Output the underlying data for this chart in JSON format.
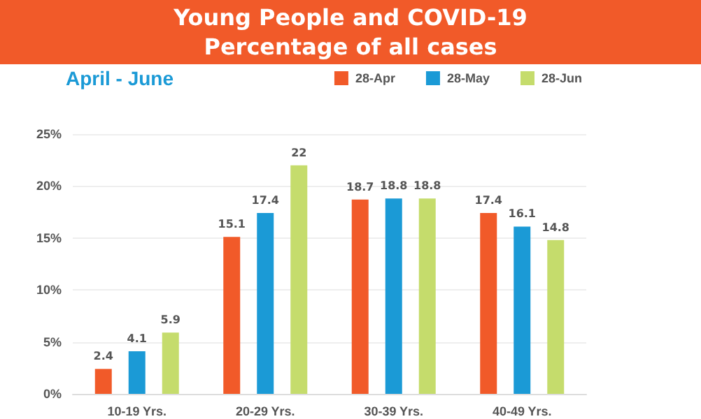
{
  "chart_data": {
    "type": "bar",
    "title": "Young People and COVID-19\nPercentage of all cases",
    "subtitle": "April - June",
    "categories": [
      "10-19 Yrs.",
      "20-29 Yrs.",
      "30-39 Yrs.",
      "40-49 Yrs."
    ],
    "series": [
      {
        "name": "28-Apr",
        "color": "#f15a29",
        "values": [
          2.4,
          15.1,
          18.7,
          17.4
        ]
      },
      {
        "name": "28-May",
        "color": "#1b9ad6",
        "values": [
          4.1,
          17.4,
          18.8,
          16.1
        ]
      },
      {
        "name": "28-Jun",
        "color": "#c5dc6c",
        "values": [
          5.9,
          22,
          18.8,
          14.8
        ]
      }
    ],
    "ylim": [
      0,
      25
    ],
    "yticks": [
      {
        "value": 0,
        "label": "0%"
      },
      {
        "value": 5,
        "label": "5%"
      },
      {
        "value": 10,
        "label": "10%"
      },
      {
        "value": 15,
        "label": "15%"
      },
      {
        "value": 20,
        "label": "20%"
      },
      {
        "value": 25,
        "label": "25%"
      }
    ],
    "grid": "y",
    "legend": "top right",
    "data_labels": true
  }
}
